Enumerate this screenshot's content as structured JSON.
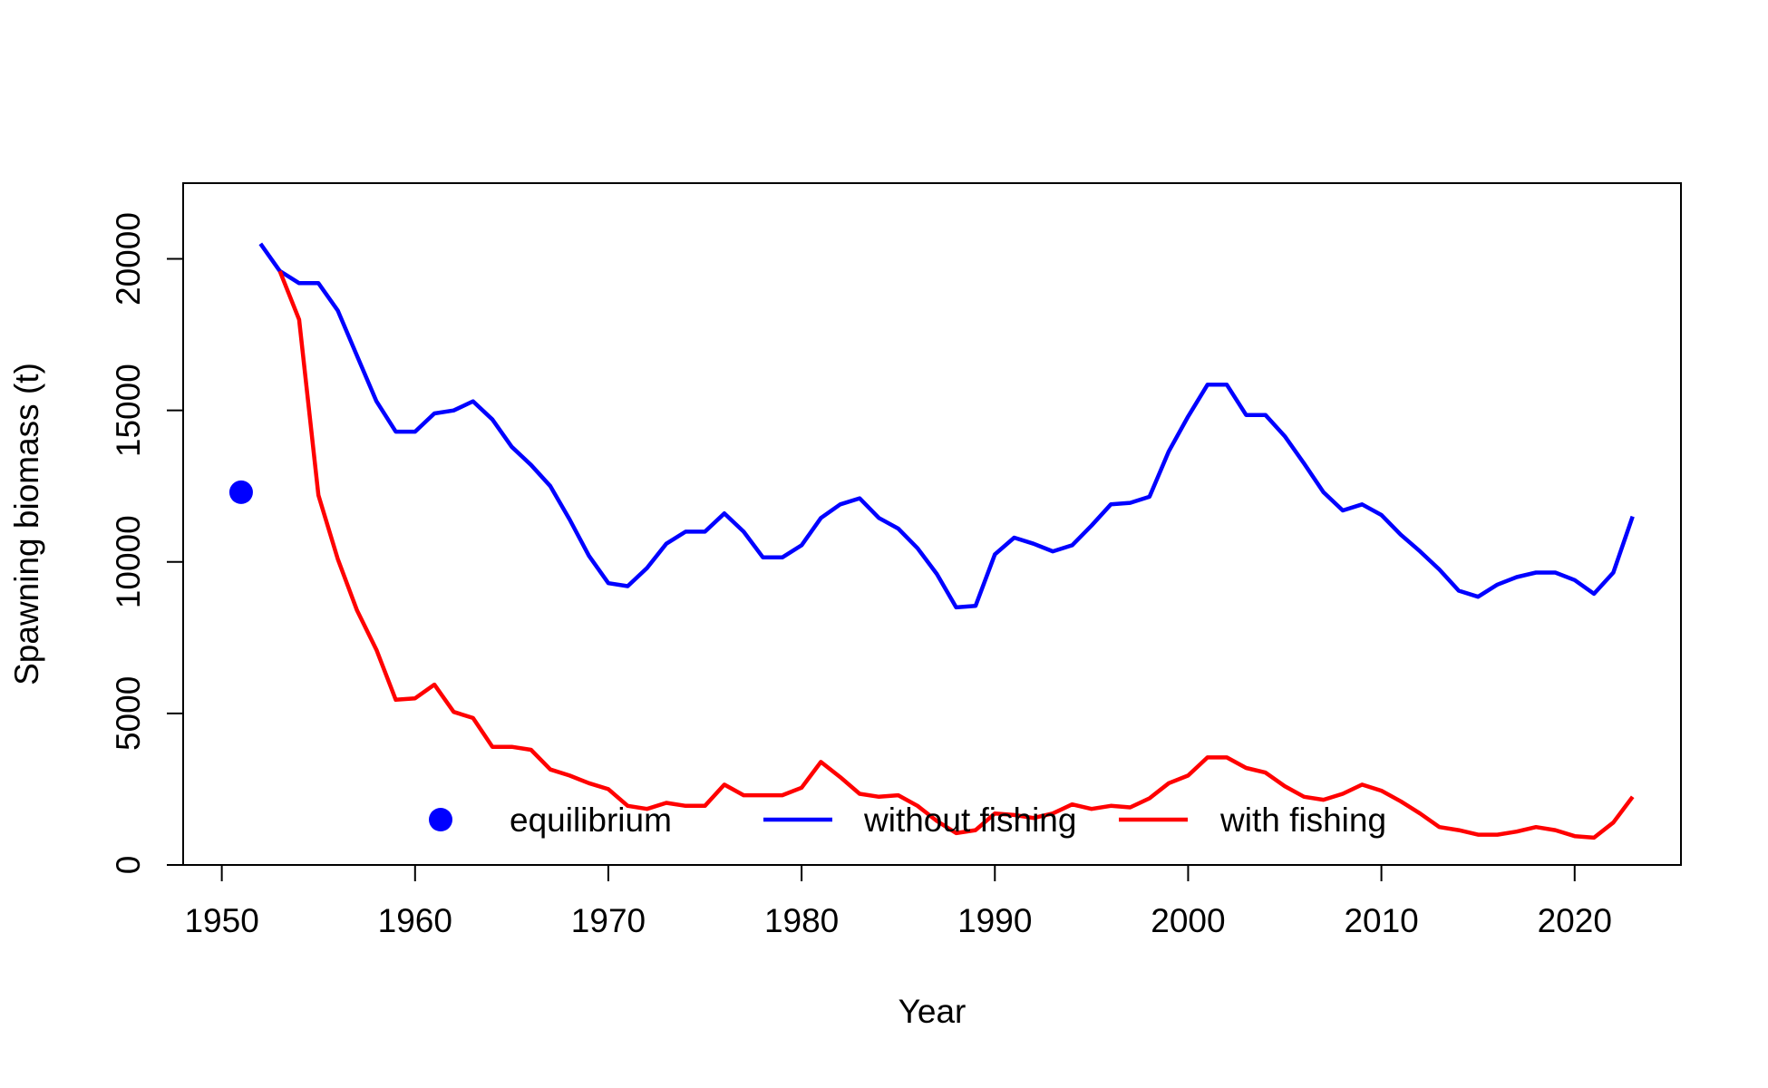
{
  "chart_data": {
    "type": "line",
    "title": "",
    "xlabel": "Year",
    "ylabel": "Spawning biomass (t)",
    "xlim": [
      1948,
      2025.5
    ],
    "ylim": [
      0,
      22500
    ],
    "x_ticks": [
      1950,
      1960,
      1970,
      1980,
      1990,
      2000,
      2010,
      2020
    ],
    "y_ticks": [
      0,
      5000,
      10000,
      15000,
      20000
    ],
    "grid": false,
    "legend": {
      "position": "bottom-center",
      "entries": [
        {
          "label": "equilibrium",
          "kind": "point",
          "color": "#0000ff"
        },
        {
          "label": "without fishing",
          "kind": "line",
          "color": "#0000ff"
        },
        {
          "label": "with fishing",
          "kind": "line",
          "color": "#ff0000"
        }
      ]
    },
    "equilibrium": {
      "name": "equilibrium",
      "x": 1951,
      "y": 12300,
      "color": "#0000ff"
    },
    "series": [
      {
        "name": "without fishing",
        "color": "#0000ff",
        "x": [
          1952,
          1953,
          1954,
          1955,
          1956,
          1957,
          1958,
          1959,
          1960,
          1961,
          1962,
          1963,
          1964,
          1965,
          1966,
          1967,
          1968,
          1969,
          1970,
          1971,
          1972,
          1973,
          1974,
          1975,
          1976,
          1977,
          1978,
          1979,
          1980,
          1981,
          1982,
          1983,
          1984,
          1985,
          1986,
          1987,
          1988,
          1989,
          1990,
          1991,
          1992,
          1993,
          1994,
          1995,
          1996,
          1997,
          1998,
          1999,
          2000,
          2001,
          2002,
          2003,
          2004,
          2005,
          2006,
          2007,
          2008,
          2009,
          2010,
          2011,
          2012,
          2013,
          2014,
          2015,
          2016,
          2017,
          2018,
          2019,
          2020,
          2021,
          2022,
          2023
        ],
        "y": [
          20500,
          19600,
          19200,
          19200,
          18300,
          16800,
          15300,
          14300,
          14300,
          14900,
          15000,
          15300,
          14700,
          13800,
          13200,
          12500,
          11400,
          10200,
          9300,
          9200,
          9800,
          10600,
          11000,
          11000,
          11600,
          11000,
          10150,
          10150,
          10550,
          11450,
          11900,
          12100,
          11450,
          11100,
          10450,
          9600,
          8500,
          8550,
          10250,
          10800,
          10600,
          10350,
          10550,
          11200,
          11900,
          11950,
          12150,
          13650,
          14800,
          15850,
          15850,
          14850,
          14850,
          14150,
          13250,
          12300,
          11700,
          11900,
          11550,
          10900,
          10350,
          9750,
          9050,
          8850,
          9250,
          9500,
          9650,
          9650,
          9400,
          8950,
          9650,
          11500
        ]
      },
      {
        "name": "with fishing",
        "color": "#ff0000",
        "x": [
          1953,
          1954,
          1955,
          1956,
          1957,
          1958,
          1959,
          1960,
          1961,
          1962,
          1963,
          1964,
          1965,
          1966,
          1967,
          1968,
          1969,
          1970,
          1971,
          1972,
          1973,
          1974,
          1975,
          1976,
          1977,
          1978,
          1979,
          1980,
          1981,
          1982,
          1983,
          1984,
          1985,
          1986,
          1987,
          1988,
          1989,
          1990,
          1991,
          1992,
          1993,
          1994,
          1995,
          1996,
          1997,
          1998,
          1999,
          2000,
          2001,
          2002,
          2003,
          2004,
          2005,
          2006,
          2007,
          2008,
          2009,
          2010,
          2011,
          2012,
          2013,
          2014,
          2015,
          2016,
          2017,
          2018,
          2019,
          2020,
          2021,
          2022,
          2023
        ],
        "y": [
          19600,
          18000,
          12200,
          10100,
          8400,
          7100,
          5450,
          5500,
          5950,
          5050,
          4850,
          3900,
          3900,
          3800,
          3150,
          2950,
          2700,
          2500,
          1950,
          1850,
          2050,
          1950,
          1950,
          2650,
          2300,
          2300,
          2300,
          2550,
          3400,
          2900,
          2350,
          2250,
          2300,
          1950,
          1450,
          1050,
          1150,
          1700,
          1650,
          1550,
          1700,
          2000,
          1850,
          1950,
          1900,
          2200,
          2700,
          2950,
          3550,
          3550,
          3200,
          3050,
          2600,
          2250,
          2150,
          2350,
          2650,
          2450,
          2100,
          1700,
          1250,
          1150,
          1000,
          1000,
          1100,
          1250,
          1150,
          950,
          900,
          1400,
          2250
        ]
      }
    ]
  }
}
